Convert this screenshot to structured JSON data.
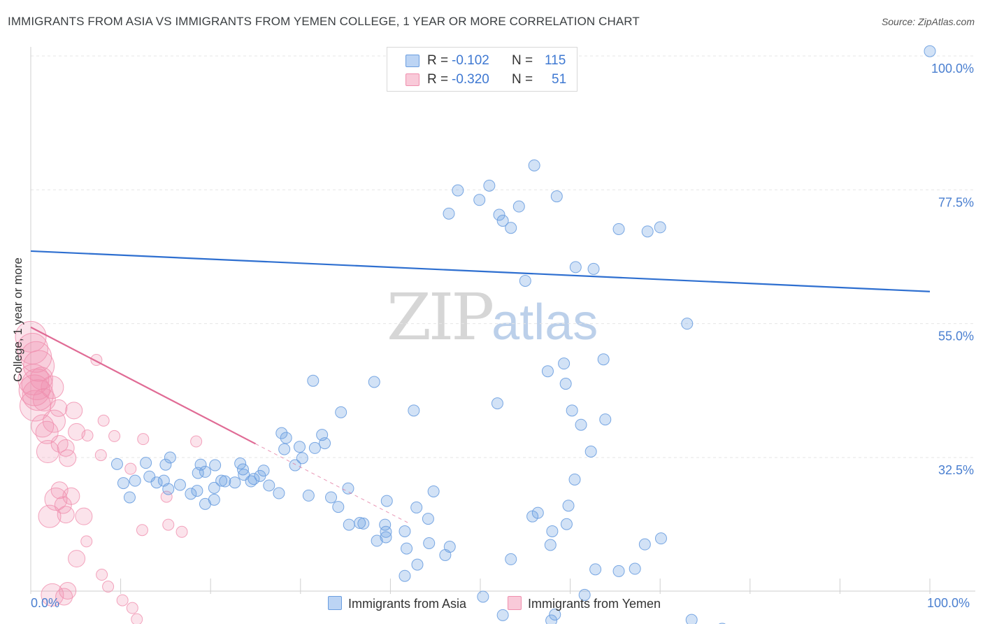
{
  "title": "IMMIGRANTS FROM ASIA VS IMMIGRANTS FROM YEMEN COLLEGE, 1 YEAR OR MORE CORRELATION CHART",
  "source": "Source: ZipAtlas.com",
  "watermark": {
    "zip": "ZIP",
    "atlas": "atlas"
  },
  "legend": {
    "rows": [
      {
        "r_label": "R =",
        "r_value": "-0.102",
        "n_label": "N =",
        "n_value": "115"
      },
      {
        "r_label": "R =",
        "r_value": "-0.320",
        "n_label": "N =",
        "n_value": "51"
      }
    ]
  },
  "chart_data": {
    "type": "scatter",
    "ylabel": "College, 1 year or more",
    "xlim": [
      0,
      100
    ],
    "ylim": [
      10,
      100
    ],
    "x_ticks_labels": {
      "left": "0.0%",
      "right": "100.0%"
    },
    "y_ticks": [
      {
        "value": 100,
        "label": "100.0%"
      },
      {
        "value": 77.5,
        "label": "77.5%"
      },
      {
        "value": 55,
        "label": "55.0%"
      },
      {
        "value": 32.5,
        "label": "32.5%"
      }
    ],
    "grid": true,
    "colors": {
      "asia": "#6b9ee0",
      "yemen": "#f08fae",
      "asia_line": "#2e6fd0",
      "yemen_line": "#e06b95"
    },
    "series": [
      {
        "name": "Immigrants from Asia",
        "trend": {
          "x0": 0,
          "y0": 67.2,
          "x1": 100,
          "y1": 60.4
        },
        "points": [
          [
            100,
            100.8
          ],
          [
            73,
            55
          ],
          [
            70,
            71.2
          ],
          [
            68.6,
            70.5
          ],
          [
            65.4,
            70.9
          ],
          [
            56,
            81.6
          ],
          [
            51,
            78.2
          ],
          [
            47.5,
            77.4
          ],
          [
            49.9,
            75.8
          ],
          [
            46.5,
            73.5
          ],
          [
            58.5,
            76.4
          ],
          [
            54.3,
            74.7
          ],
          [
            53.4,
            71.1
          ],
          [
            52.5,
            72.3
          ],
          [
            52.1,
            73.3
          ],
          [
            55,
            62.2
          ],
          [
            60.6,
            64.5
          ],
          [
            62.6,
            64.2
          ],
          [
            63.7,
            49
          ],
          [
            59.3,
            48.3
          ],
          [
            59.5,
            44.9
          ],
          [
            57.5,
            47
          ],
          [
            60.2,
            40.4
          ],
          [
            62.3,
            33.5
          ],
          [
            61.2,
            38
          ],
          [
            51.9,
            41.6
          ],
          [
            63.9,
            38.9
          ],
          [
            60.5,
            28.8
          ],
          [
            56.4,
            23.2
          ],
          [
            55.8,
            22.6
          ],
          [
            59.8,
            24.4
          ],
          [
            44.2,
            22.2
          ],
          [
            39.6,
            25.2
          ],
          [
            38.2,
            45.2
          ],
          [
            42.6,
            40.4
          ],
          [
            34.5,
            40.1
          ],
          [
            31.4,
            45.4
          ],
          [
            27.9,
            36.6
          ],
          [
            28.4,
            35.8
          ],
          [
            28.2,
            33.9
          ],
          [
            32.4,
            36.3
          ],
          [
            29.9,
            34.3
          ],
          [
            32.7,
            34.9
          ],
          [
            31.6,
            34.1
          ],
          [
            30.2,
            32.4
          ],
          [
            29.4,
            31.2
          ],
          [
            25.9,
            30.3
          ],
          [
            25.5,
            29.4
          ],
          [
            24.8,
            28.9
          ],
          [
            21.6,
            28.5
          ],
          [
            23.3,
            31.5
          ],
          [
            23.6,
            30.5
          ],
          [
            15.5,
            32.5
          ],
          [
            14.8,
            28.6
          ],
          [
            11,
            25.8
          ],
          [
            12.8,
            31.6
          ],
          [
            15,
            31.3
          ],
          [
            14,
            28.3
          ],
          [
            15.3,
            27.2
          ],
          [
            18.5,
            26.9
          ],
          [
            20.4,
            27.4
          ],
          [
            16.6,
            27.9
          ],
          [
            17.8,
            26.4
          ],
          [
            10.3,
            28.2
          ],
          [
            11.6,
            28.6
          ],
          [
            13.2,
            29.3
          ],
          [
            9.6,
            31.4
          ],
          [
            19.4,
            24.7
          ],
          [
            21.2,
            28.6
          ],
          [
            22.7,
            28.3
          ],
          [
            23.7,
            29.6
          ],
          [
            20.4,
            25.4
          ],
          [
            18.9,
            31.3
          ],
          [
            20.5,
            31.2
          ],
          [
            18.6,
            29.9
          ],
          [
            19.4,
            30.1
          ],
          [
            26.5,
            27.8
          ],
          [
            24.5,
            28.5
          ],
          [
            27.6,
            26.5
          ],
          [
            30.9,
            26.1
          ],
          [
            34.2,
            24.2
          ],
          [
            36.6,
            21.5
          ],
          [
            39.4,
            21.2
          ],
          [
            42.9,
            24.1
          ],
          [
            44.8,
            26.8
          ],
          [
            35.4,
            21.2
          ],
          [
            37,
            21.4
          ],
          [
            33.4,
            25.8
          ],
          [
            35.3,
            27.3
          ],
          [
            39.5,
            20
          ],
          [
            38.5,
            18.5
          ],
          [
            41.8,
            17.2
          ],
          [
            39.5,
            19.1
          ],
          [
            41.6,
            20.1
          ],
          [
            44.3,
            18.1
          ],
          [
            46.6,
            17.5
          ],
          [
            43,
            14.5
          ],
          [
            46.1,
            16.1
          ],
          [
            41.6,
            12.6
          ],
          [
            50.3,
            9.1
          ],
          [
            52.5,
            6
          ],
          [
            57.9,
            5.1
          ],
          [
            58.3,
            6.1
          ],
          [
            61.6,
            9.4
          ],
          [
            58,
            20.1
          ],
          [
            59.6,
            21.3
          ],
          [
            53.4,
            15.4
          ],
          [
            57.8,
            17.8
          ],
          [
            62.8,
            13.7
          ],
          [
            65.4,
            13.4
          ],
          [
            67.2,
            13.8
          ],
          [
            68.3,
            17.9
          ],
          [
            70.1,
            18.9
          ],
          [
            73.5,
            5.2
          ],
          [
            76.9,
            3.7
          ]
        ]
      },
      {
        "name": "Immigrants from Yemen",
        "trend": {
          "x0": 0,
          "y0": 54.4,
          "x1": 25,
          "y1": 34.8,
          "dash_x1": 42,
          "dash_y1": 21.5
        },
        "points": [
          [
            0,
            52.8
          ],
          [
            0.2,
            50.8
          ],
          [
            0.6,
            49.4
          ],
          [
            0.9,
            47.9
          ],
          [
            0.3,
            45.6
          ],
          [
            1.2,
            45.8
          ],
          [
            0.7,
            44.8
          ],
          [
            0.4,
            43.8
          ],
          [
            0.8,
            43
          ],
          [
            1.5,
            42.2
          ],
          [
            0.5,
            41.2
          ],
          [
            2.4,
            44.3
          ],
          [
            3.1,
            40.8
          ],
          [
            2.6,
            38.6
          ],
          [
            1.3,
            37.8
          ],
          [
            1.8,
            36.7
          ],
          [
            3.2,
            34.8
          ],
          [
            3.9,
            34.1
          ],
          [
            1.9,
            33.5
          ],
          [
            4.1,
            32.4
          ],
          [
            7.3,
            48.9
          ],
          [
            4.8,
            40.4
          ],
          [
            8.1,
            38.7
          ],
          [
            5.1,
            36.8
          ],
          [
            6.3,
            36.2
          ],
          [
            9.3,
            36.1
          ],
          [
            12.5,
            35.6
          ],
          [
            7.8,
            32.9
          ],
          [
            11.1,
            30.6
          ],
          [
            18.4,
            35.2
          ],
          [
            15.1,
            25.9
          ],
          [
            3.2,
            27
          ],
          [
            4.5,
            26
          ],
          [
            2.8,
            25.5
          ],
          [
            3.6,
            24.5
          ],
          [
            2.1,
            22.6
          ],
          [
            3.9,
            22.9
          ],
          [
            5.9,
            22.6
          ],
          [
            6.2,
            18.4
          ],
          [
            15.3,
            21.2
          ],
          [
            12.4,
            20.3
          ],
          [
            16.8,
            20
          ],
          [
            5.1,
            15.5
          ],
          [
            7.9,
            12.8
          ],
          [
            8.6,
            10.8
          ],
          [
            4.1,
            10.1
          ],
          [
            2.4,
            9.4
          ],
          [
            3.7,
            9.1
          ],
          [
            10.2,
            8.5
          ],
          [
            11.3,
            7.2
          ],
          [
            11.8,
            5.3
          ]
        ]
      }
    ]
  },
  "bottom_legend": {
    "asia": "Immigrants from Asia",
    "yemen": "Immigrants from Yemen"
  }
}
